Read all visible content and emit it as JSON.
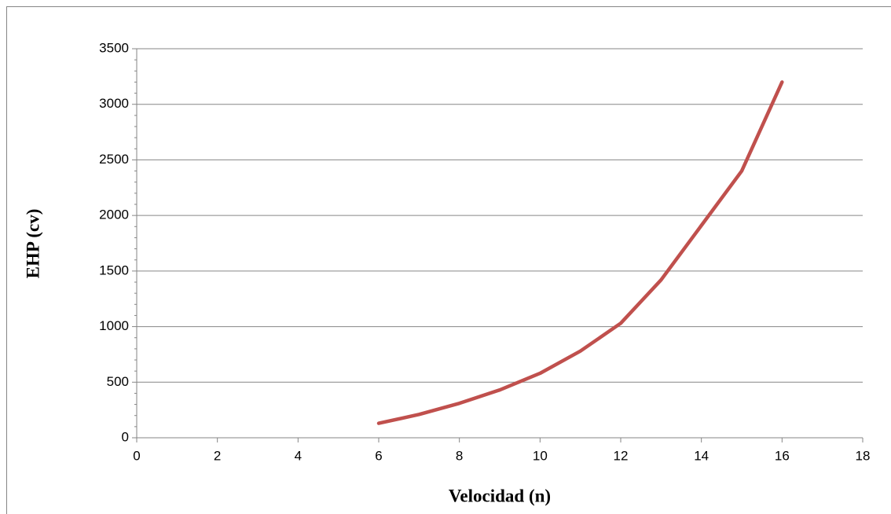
{
  "chart_data": {
    "type": "line",
    "x_label": "Velocidad (n)",
    "y_label": "EHP (cv)",
    "x": [
      6,
      7,
      8,
      9,
      10,
      11,
      12,
      13,
      14,
      15,
      16
    ],
    "series": [
      {
        "name": "EHP",
        "color": "#c0504d",
        "values": [
          130,
          210,
          310,
          430,
          580,
          780,
          1030,
          1420,
          1910,
          2400,
          3200
        ]
      }
    ],
    "xlim": [
      0,
      18
    ],
    "xticks": [
      0,
      2,
      4,
      6,
      8,
      10,
      12,
      14,
      16,
      18
    ],
    "ylim": [
      0,
      3500
    ],
    "yticks": [
      0,
      500,
      1000,
      1500,
      2000,
      2500,
      3000,
      3500
    ],
    "grid": true
  }
}
